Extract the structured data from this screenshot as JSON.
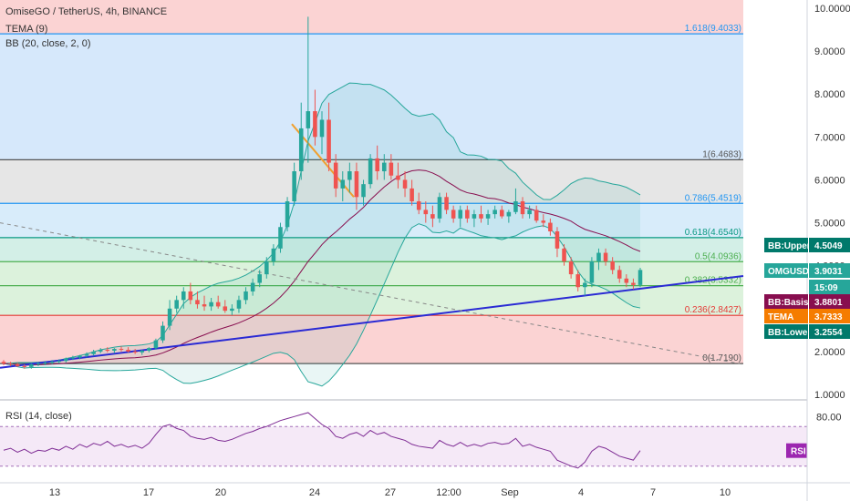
{
  "header": {
    "symbol": "OmiseGO / TetherUS, 4h, BINANCE",
    "indicator_1": "TEMA (9)",
    "indicator_2": "BB (20, close, 2, 0)",
    "rsi_label": "RSI (14, close)"
  },
  "chart_data": [
    {
      "type": "candlestick",
      "title": "OmiseGO / TetherUS, 4h, BINANCE",
      "ylim": [
        1.0,
        10.0
      ],
      "scale": "linear",
      "y_ticks": [
        "10.0000",
        "9.0000",
        "8.0000",
        "7.0000",
        "6.0000",
        "5.0000",
        "4.0000",
        "3.0000",
        "2.0000",
        "1.0000"
      ],
      "x_ticks": [
        "13",
        "17",
        "20",
        "24",
        "27",
        "12:00",
        "Sep",
        "4",
        "7",
        "10"
      ],
      "fib_levels": [
        {
          "label": "1.618(9.4033)",
          "value": 9.4033,
          "color": "#2196f3"
        },
        {
          "label": "1(6.4683)",
          "value": 6.4683,
          "color": "#555555"
        },
        {
          "label": "0.786(5.4519)",
          "value": 5.4519,
          "color": "#2196f3"
        },
        {
          "label": "0.618(4.6540)",
          "value": 4.654,
          "color": "#089981"
        },
        {
          "label": "0.5(4.0936)",
          "value": 4.0936,
          "color": "#4caf50"
        },
        {
          "label": "0.382(3.5332)",
          "value": 3.5332,
          "color": "#4caf50"
        },
        {
          "label": "0.236(2.8427)",
          "value": 2.8427,
          "color": "#e53935"
        },
        {
          "label": "0(1.7190)",
          "value": 1.719,
          "color": "#555555"
        }
      ],
      "price_badges": [
        {
          "label": "BB:Upper",
          "value": "4.5049",
          "color": "#00796b"
        },
        {
          "label": "OMGUSDT",
          "value": "3.9031",
          "color": "#26a69a"
        },
        {
          "label": "",
          "value": "15:09",
          "color": "#26a69a"
        },
        {
          "label": "BB:Basis",
          "value": "3.8801",
          "color": "#880e4f"
        },
        {
          "label": "TEMA",
          "value": "3.7333",
          "color": "#f57c00"
        },
        {
          "label": "BB:Lower",
          "value": "3.2554",
          "color": "#00796b"
        }
      ],
      "candles": [
        [
          1.76,
          1.8,
          1.68,
          1.72
        ],
        [
          1.72,
          1.76,
          1.66,
          1.7
        ],
        [
          1.7,
          1.74,
          1.64,
          1.66
        ],
        [
          1.66,
          1.7,
          1.6,
          1.64
        ],
        [
          1.64,
          1.72,
          1.6,
          1.7
        ],
        [
          1.7,
          1.76,
          1.66,
          1.72
        ],
        [
          1.72,
          1.78,
          1.68,
          1.74
        ],
        [
          1.74,
          1.8,
          1.7,
          1.76
        ],
        [
          1.76,
          1.82,
          1.72,
          1.78
        ],
        [
          1.78,
          1.86,
          1.74,
          1.84
        ],
        [
          1.84,
          1.9,
          1.8,
          1.86
        ],
        [
          1.86,
          1.92,
          1.82,
          1.9
        ],
        [
          1.9,
          1.98,
          1.86,
          1.94
        ],
        [
          1.94,
          2.04,
          1.9,
          2.0
        ],
        [
          2.0,
          2.08,
          1.96,
          2.04
        ],
        [
          2.04,
          2.1,
          1.98,
          2.02
        ],
        [
          2.02,
          2.08,
          1.96,
          2.06
        ],
        [
          2.06,
          2.12,
          2.0,
          2.04
        ],
        [
          2.04,
          2.1,
          1.98,
          2.0
        ],
        [
          2.0,
          2.06,
          1.94,
          1.98
        ],
        [
          1.98,
          2.04,
          1.92,
          2.02
        ],
        [
          2.02,
          2.1,
          1.98,
          2.08
        ],
        [
          2.08,
          2.3,
          2.04,
          2.26
        ],
        [
          2.26,
          2.7,
          2.2,
          2.6
        ],
        [
          2.6,
          3.2,
          2.5,
          3.0
        ],
        [
          3.0,
          3.3,
          2.9,
          3.2
        ],
        [
          3.2,
          3.5,
          3.0,
          3.4
        ],
        [
          3.4,
          3.6,
          3.1,
          3.2
        ],
        [
          3.2,
          3.4,
          3.0,
          3.1
        ],
        [
          3.1,
          3.3,
          2.95,
          3.05
        ],
        [
          3.05,
          3.25,
          2.95,
          3.15
        ],
        [
          3.15,
          3.3,
          3.0,
          3.05
        ],
        [
          3.05,
          3.2,
          2.9,
          2.95
        ],
        [
          2.95,
          3.1,
          2.85,
          3.0
        ],
        [
          3.0,
          3.3,
          2.9,
          3.2
        ],
        [
          3.2,
          3.5,
          3.1,
          3.4
        ],
        [
          3.4,
          3.7,
          3.3,
          3.6
        ],
        [
          3.6,
          3.9,
          3.5,
          3.8
        ],
        [
          3.8,
          4.2,
          3.7,
          4.1
        ],
        [
          4.1,
          4.5,
          4.0,
          4.4
        ],
        [
          4.4,
          5.0,
          4.3,
          4.9
        ],
        [
          4.9,
          5.6,
          4.8,
          5.5
        ],
        [
          5.5,
          6.4,
          5.4,
          6.2
        ],
        [
          6.2,
          7.8,
          6.0,
          7.2
        ],
        [
          7.2,
          9.8,
          6.4,
          7.6
        ],
        [
          7.6,
          8.1,
          6.8,
          7.0
        ],
        [
          7.0,
          7.6,
          6.6,
          7.4
        ],
        [
          7.4,
          7.8,
          6.2,
          6.4
        ],
        [
          6.4,
          6.6,
          5.6,
          5.8
        ],
        [
          5.8,
          6.2,
          5.5,
          6.0
        ],
        [
          6.0,
          6.4,
          5.7,
          6.2
        ],
        [
          6.2,
          6.4,
          5.3,
          5.6
        ],
        [
          5.6,
          6.0,
          5.4,
          5.9
        ],
        [
          5.9,
          6.6,
          5.8,
          6.5
        ],
        [
          6.5,
          6.8,
          6.0,
          6.2
        ],
        [
          6.2,
          6.6,
          6.0,
          6.4
        ],
        [
          6.4,
          6.6,
          6.0,
          6.1
        ],
        [
          6.1,
          6.4,
          5.8,
          6.0
        ],
        [
          6.0,
          6.2,
          5.6,
          5.8
        ],
        [
          5.8,
          6.0,
          5.4,
          5.5
        ],
        [
          5.5,
          5.7,
          5.2,
          5.3
        ],
        [
          5.3,
          5.5,
          5.0,
          5.2
        ],
        [
          5.2,
          5.4,
          4.9,
          5.1
        ],
        [
          5.1,
          5.7,
          5.0,
          5.6
        ],
        [
          5.6,
          5.7,
          5.2,
          5.3
        ],
        [
          5.3,
          5.4,
          5.0,
          5.1
        ],
        [
          5.1,
          5.4,
          4.9,
          5.3
        ],
        [
          5.3,
          5.4,
          5.0,
          5.1
        ],
        [
          5.1,
          5.3,
          4.9,
          5.2
        ],
        [
          5.2,
          5.4,
          5.0,
          5.1
        ],
        [
          5.1,
          5.3,
          4.95,
          5.2
        ],
        [
          5.2,
          5.4,
          5.1,
          5.3
        ],
        [
          5.3,
          5.4,
          5.1,
          5.15
        ],
        [
          5.15,
          5.3,
          5.0,
          5.25
        ],
        [
          5.25,
          5.8,
          5.2,
          5.5
        ],
        [
          5.5,
          5.6,
          5.1,
          5.2
        ],
        [
          5.2,
          5.4,
          5.1,
          5.3
        ],
        [
          5.3,
          5.4,
          5.0,
          5.05
        ],
        [
          5.05,
          5.2,
          4.9,
          5.0
        ],
        [
          5.0,
          5.1,
          4.7,
          4.8
        ],
        [
          4.8,
          4.9,
          4.2,
          4.4
        ],
        [
          4.4,
          4.5,
          4.0,
          4.1
        ],
        [
          4.1,
          4.2,
          3.7,
          3.8
        ],
        [
          3.8,
          3.9,
          3.4,
          3.5
        ],
        [
          3.5,
          3.7,
          3.3,
          3.6
        ],
        [
          3.6,
          4.2,
          3.5,
          4.1
        ],
        [
          4.1,
          4.4,
          3.9,
          4.3
        ],
        [
          4.3,
          4.4,
          4.0,
          4.1
        ],
        [
          4.1,
          4.2,
          3.8,
          3.9
        ],
        [
          3.9,
          4.0,
          3.6,
          3.7
        ],
        [
          3.7,
          3.8,
          3.5,
          3.6
        ],
        [
          3.6,
          3.7,
          3.45,
          3.55
        ],
        [
          3.55,
          3.95,
          3.5,
          3.9
        ]
      ]
    },
    {
      "type": "line",
      "title": "RSI (14, close)",
      "ylim": [
        15,
        95
      ],
      "y_ticks": [
        "80.00"
      ],
      "band": [
        30,
        70
      ],
      "last_value_label": "RSI",
      "last_value": "45.63",
      "values": [
        46,
        48,
        44,
        47,
        43,
        46,
        45,
        48,
        46,
        50,
        47,
        52,
        49,
        53,
        51,
        55,
        50,
        52,
        49,
        51,
        48,
        53,
        62,
        70,
        72,
        68,
        66,
        60,
        58,
        57,
        59,
        56,
        55,
        57,
        60,
        63,
        65,
        68,
        70,
        73,
        76,
        78,
        80,
        82,
        84,
        78,
        72,
        68,
        60,
        58,
        62,
        64,
        60,
        66,
        62,
        64,
        60,
        58,
        56,
        52,
        50,
        49,
        48,
        56,
        52,
        50,
        54,
        50,
        52,
        50,
        53,
        54,
        52,
        53,
        58,
        50,
        52,
        49,
        47,
        45,
        36,
        33,
        30,
        28,
        34,
        45,
        50,
        48,
        44,
        40,
        38,
        36,
        45.63
      ]
    }
  ]
}
